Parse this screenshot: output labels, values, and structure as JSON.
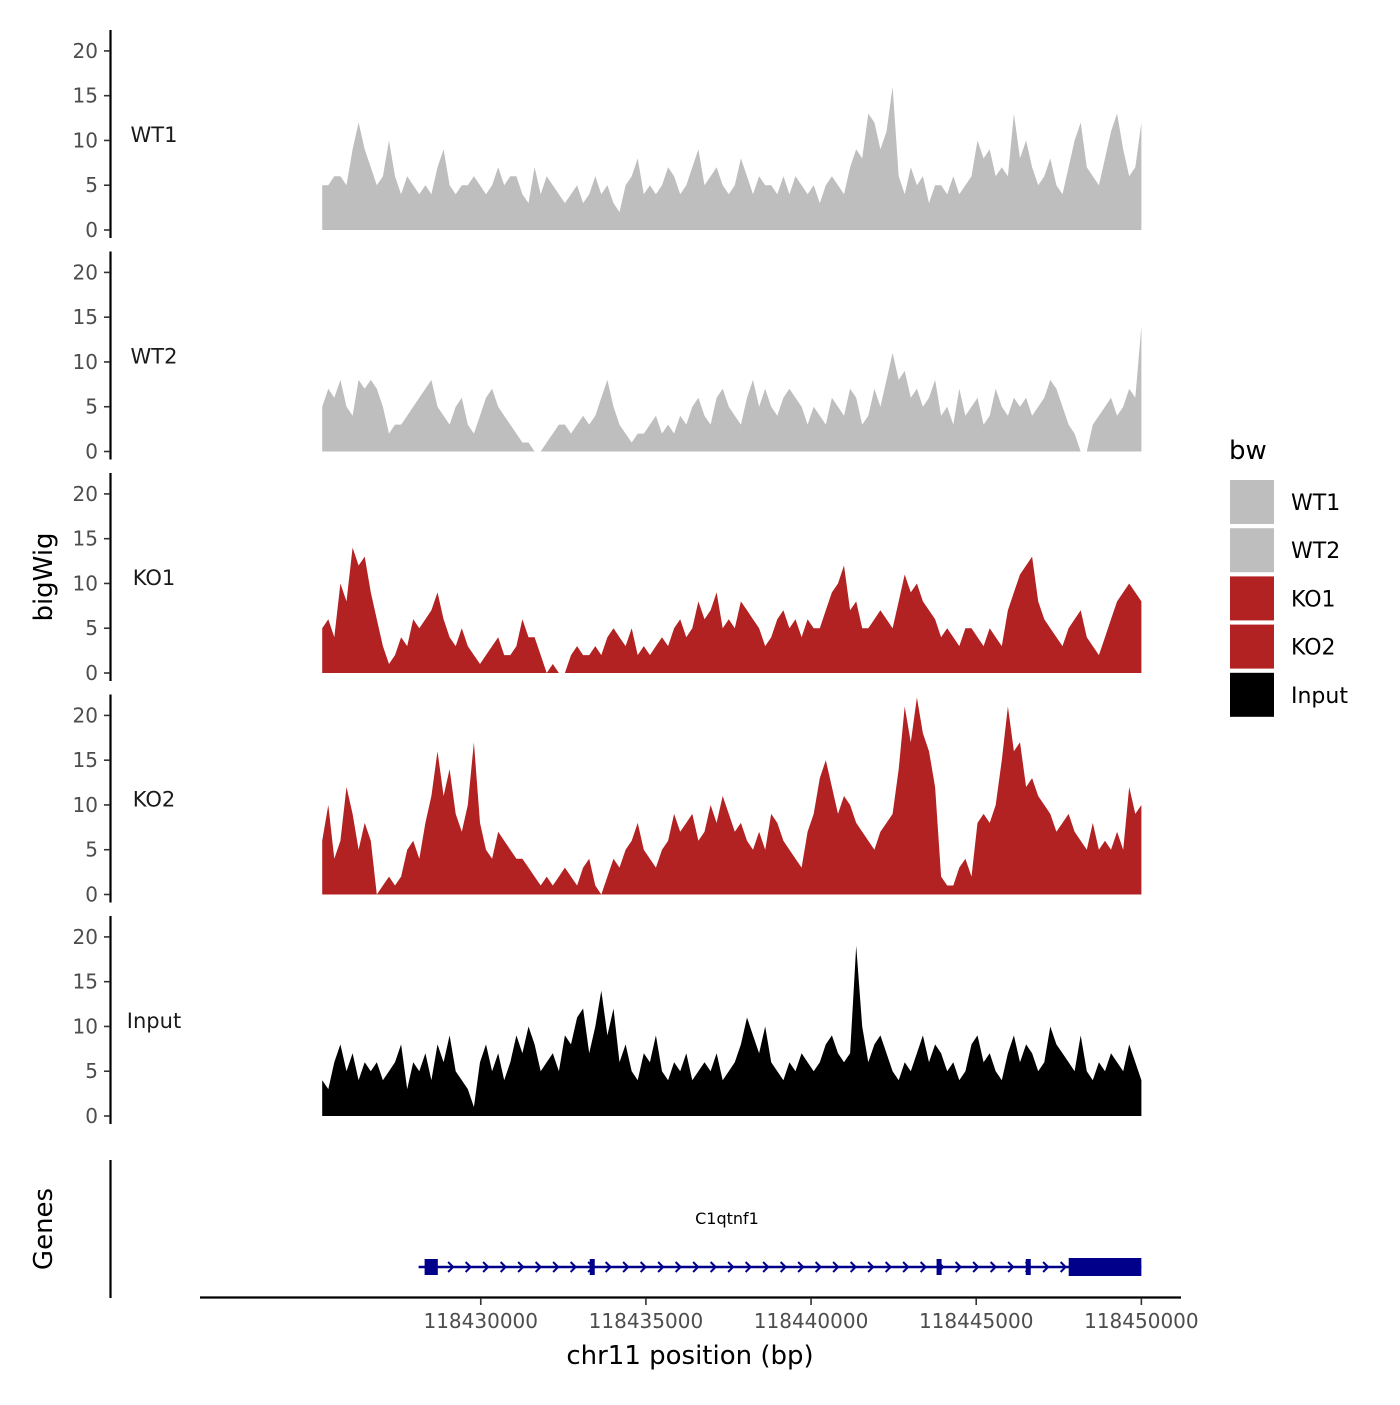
{
  "chart_data": {
    "type": "area",
    "ylabel": "bigWig",
    "xlabel": "chr11 position (bp)",
    "gene_panel_label": "Genes",
    "chromosome": "chr11",
    "x_range": [
      118421500,
      118451200
    ],
    "y_range": [
      0,
      22
    ],
    "y_ticks": [
      0,
      5,
      10,
      15,
      20
    ],
    "x_ticks": [
      118430000,
      118435000,
      118440000,
      118445000,
      118450000
    ],
    "x_tick_labels": [
      "118430000",
      "118435000",
      "118440000",
      "118445000",
      "118450000"
    ],
    "legend": {
      "title": "bw",
      "position": "right",
      "entries": [
        {
          "label": "WT1",
          "color": "#bebebe"
        },
        {
          "label": "WT2",
          "color": "#bebebe"
        },
        {
          "label": "KO1",
          "color": "#b22222"
        },
        {
          "label": "KO2",
          "color": "#b22222"
        },
        {
          "label": "Input",
          "color": "#000000"
        }
      ]
    },
    "track_start": 118425200,
    "track_end": 118450000,
    "series": [
      {
        "name": "WT1",
        "color": "#bebebe",
        "values": [
          5,
          5,
          6,
          6,
          5,
          9,
          12,
          9,
          7,
          5,
          6,
          10,
          6,
          4,
          6,
          5,
          4,
          5,
          4,
          7,
          9,
          5,
          4,
          5,
          5,
          6,
          5,
          4,
          5,
          7,
          5,
          6,
          6,
          4,
          3,
          7,
          4,
          6,
          5,
          4,
          3,
          4,
          5,
          3,
          4,
          6,
          4,
          5,
          3,
          2,
          5,
          6,
          8,
          4,
          5,
          4,
          5,
          7,
          6,
          4,
          5,
          7,
          9,
          5,
          6,
          7,
          5,
          4,
          5,
          8,
          6,
          4,
          6,
          5,
          5,
          4,
          6,
          4,
          6,
          5,
          4,
          5,
          3,
          5,
          6,
          5,
          4,
          7,
          9,
          8,
          13,
          12,
          9,
          11,
          16,
          6,
          4,
          7,
          5,
          6,
          3,
          5,
          5,
          4,
          6,
          4,
          5,
          6,
          10,
          8,
          9,
          6,
          7,
          6,
          13,
          8,
          10,
          7,
          5,
          6,
          8,
          5,
          4,
          7,
          10,
          12,
          7,
          6,
          5,
          8,
          11,
          13,
          9,
          6,
          7,
          12
        ]
      },
      {
        "name": "WT2",
        "color": "#bebebe",
        "values": [
          5,
          7,
          6,
          8,
          5,
          4,
          8,
          7,
          8,
          7,
          5,
          2,
          3,
          3,
          4,
          5,
          6,
          7,
          8,
          5,
          4,
          3,
          5,
          6,
          3,
          2,
          4,
          6,
          7,
          5,
          4,
          3,
          2,
          1,
          1,
          0,
          0,
          1,
          2,
          3,
          3,
          2,
          3,
          4,
          3,
          4,
          6,
          8,
          5,
          3,
          2,
          1,
          2,
          2,
          3,
          4,
          2,
          3,
          2,
          4,
          3,
          5,
          6,
          4,
          3,
          6,
          7,
          5,
          4,
          3,
          6,
          8,
          5,
          7,
          5,
          4,
          6,
          7,
          6,
          5,
          3,
          5,
          4,
          3,
          6,
          5,
          4,
          7,
          6,
          3,
          4,
          7,
          5,
          8,
          11,
          8,
          9,
          6,
          7,
          5,
          6,
          8,
          4,
          5,
          3,
          7,
          4,
          5,
          6,
          3,
          4,
          7,
          5,
          4,
          6,
          5,
          6,
          4,
          5,
          6,
          8,
          7,
          5,
          3,
          2,
          0,
          0,
          3,
          4,
          5,
          6,
          4,
          5,
          7,
          6,
          14
        ]
      },
      {
        "name": "KO1",
        "color": "#b22222",
        "values": [
          5,
          6,
          4,
          10,
          8,
          14,
          12,
          13,
          9,
          6,
          3,
          1,
          2,
          4,
          3,
          6,
          5,
          6,
          7,
          9,
          6,
          4,
          3,
          5,
          3,
          2,
          1,
          2,
          3,
          4,
          2,
          2,
          3,
          6,
          4,
          4,
          2,
          0,
          1,
          0,
          0,
          2,
          3,
          2,
          2,
          3,
          2,
          4,
          5,
          4,
          3,
          5,
          2,
          3,
          2,
          3,
          4,
          3,
          5,
          6,
          4,
          5,
          8,
          6,
          7,
          9,
          5,
          6,
          5,
          8,
          7,
          6,
          5,
          3,
          4,
          6,
          7,
          5,
          6,
          4,
          6,
          5,
          5,
          7,
          9,
          10,
          12,
          7,
          8,
          5,
          5,
          6,
          7,
          6,
          5,
          8,
          11,
          9,
          10,
          8,
          7,
          6,
          4,
          5,
          4,
          3,
          5,
          5,
          4,
          3,
          5,
          4,
          3,
          7,
          9,
          11,
          12,
          13,
          8,
          6,
          5,
          4,
          3,
          5,
          6,
          7,
          4,
          3,
          2,
          4,
          6,
          8,
          9,
          10,
          9,
          8
        ]
      },
      {
        "name": "KO2",
        "color": "#b22222",
        "values": [
          6,
          10,
          4,
          6,
          12,
          9,
          5,
          8,
          6,
          0,
          1,
          2,
          1,
          2,
          5,
          6,
          4,
          8,
          11,
          16,
          11,
          14,
          9,
          7,
          10,
          17,
          8,
          5,
          4,
          7,
          6,
          5,
          4,
          4,
          3,
          2,
          1,
          2,
          1,
          2,
          3,
          2,
          1,
          3,
          4,
          1,
          0,
          2,
          4,
          3,
          5,
          6,
          8,
          5,
          4,
          3,
          5,
          6,
          9,
          7,
          8,
          9,
          6,
          7,
          10,
          8,
          11,
          9,
          7,
          8,
          6,
          5,
          7,
          5,
          9,
          8,
          6,
          5,
          4,
          3,
          7,
          9,
          13,
          15,
          12,
          9,
          11,
          10,
          8,
          7,
          6,
          5,
          7,
          8,
          9,
          14,
          21,
          17,
          22,
          18,
          16,
          12,
          2,
          1,
          1,
          3,
          4,
          2,
          8,
          9,
          8,
          10,
          15,
          21,
          16,
          17,
          12,
          13,
          11,
          10,
          9,
          7,
          8,
          9,
          7,
          6,
          5,
          8,
          5,
          6,
          5,
          7,
          5,
          12,
          9,
          10
        ]
      },
      {
        "name": "Input",
        "color": "#000000",
        "values": [
          4,
          3,
          6,
          8,
          5,
          7,
          4,
          6,
          5,
          6,
          4,
          5,
          6,
          8,
          3,
          6,
          5,
          7,
          4,
          8,
          6,
          9,
          5,
          4,
          3,
          1,
          6,
          8,
          5,
          7,
          4,
          6,
          9,
          7,
          10,
          8,
          5,
          6,
          7,
          5,
          9,
          8,
          11,
          12,
          7,
          10,
          14,
          9,
          12,
          6,
          8,
          5,
          4,
          7,
          6,
          9,
          5,
          4,
          6,
          5,
          7,
          4,
          5,
          6,
          5,
          7,
          4,
          5,
          6,
          8,
          11,
          9,
          7,
          10,
          6,
          5,
          4,
          6,
          5,
          7,
          6,
          5,
          6,
          8,
          9,
          7,
          6,
          7,
          19,
          10,
          6,
          8,
          9,
          7,
          5,
          4,
          6,
          5,
          7,
          9,
          6,
          8,
          7,
          5,
          6,
          4,
          5,
          8,
          9,
          6,
          7,
          5,
          4,
          7,
          9,
          6,
          8,
          7,
          5,
          6,
          10,
          8,
          7,
          6,
          5,
          9,
          5,
          4,
          6,
          5,
          7,
          6,
          5,
          8,
          6,
          4
        ]
      }
    ],
    "gene": {
      "name": "C1qtnf1",
      "strand": "+",
      "start": 118428300,
      "end": 118450000,
      "exons": [
        {
          "start": 118428300,
          "end": 118428700
        },
        {
          "start": 118433300,
          "end": 118433450
        },
        {
          "start": 118443800,
          "end": 118443950
        },
        {
          "start": 118446500,
          "end": 118446650
        },
        {
          "start": 118447800,
          "end": 118450000
        }
      ]
    }
  }
}
